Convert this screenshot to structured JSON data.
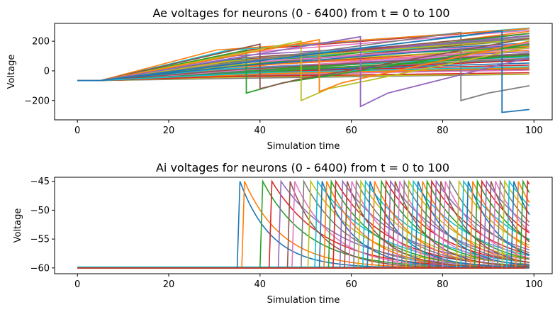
{
  "chart_data": [
    {
      "type": "line",
      "title": "Ae voltages for neurons (0 - 6400) from t = 0 to 100",
      "xlabel": "Simulation time",
      "ylabel": "Voltage",
      "xlim": [
        -5,
        104
      ],
      "ylim": [
        -330,
        320
      ],
      "xticks": [
        0,
        20,
        40,
        60,
        80,
        100
      ],
      "yticks": [
        -200,
        0,
        200
      ],
      "n_series_drawn": 60,
      "series": [
        {
          "x": [
            0,
            5,
            37,
            37,
            45,
            99
          ],
          "y": [
            -65,
            -65,
            140,
            -150,
            -80,
            180
          ]
        },
        {
          "x": [
            0,
            5,
            40,
            40,
            48,
            99
          ],
          "y": [
            -65,
            -65,
            180,
            -120,
            -60,
            220
          ]
        },
        {
          "x": [
            0,
            5,
            49,
            49,
            55,
            99
          ],
          "y": [
            -65,
            -65,
            200,
            -200,
            -120,
            160
          ]
        },
        {
          "x": [
            0,
            5,
            53,
            53,
            58,
            99
          ],
          "y": [
            -65,
            -65,
            210,
            -140,
            -80,
            200
          ]
        },
        {
          "x": [
            0,
            5,
            62,
            62,
            68,
            99
          ],
          "y": [
            -65,
            -65,
            230,
            -240,
            -150,
            90
          ]
        },
        {
          "x": [
            0,
            5,
            84,
            84,
            90,
            99
          ],
          "y": [
            -65,
            -65,
            260,
            -200,
            -150,
            -100
          ]
        },
        {
          "x": [
            0,
            5,
            93,
            93,
            99
          ],
          "y": [
            -65,
            -65,
            270,
            -280,
            -260
          ]
        }
      ]
    },
    {
      "type": "line",
      "title": "Ai voltages for neurons (0 - 6400) from t = 0 to 100",
      "xlabel": "Simulation time",
      "ylabel": "Voltage",
      "xlim": [
        -5,
        104
      ],
      "ylim": [
        -61,
        -44.3
      ],
      "xticks": [
        0,
        20,
        40,
        60,
        80,
        100
      ],
      "yticks": [
        -45,
        -50,
        -55,
        -60
      ],
      "resting_voltage": -60,
      "peak_voltage": -45,
      "spike_times": [
        35,
        36,
        40,
        42,
        44,
        46,
        47,
        49,
        50.5,
        52,
        53,
        54,
        55,
        56,
        57.5,
        58.5,
        59.5,
        60.5,
        61.5,
        62.5,
        63.5,
        64.5,
        66,
        67,
        68,
        69,
        70,
        71,
        72,
        73,
        74,
        75,
        76,
        77,
        78,
        79,
        80,
        81,
        83,
        84,
        85,
        86,
        87,
        88,
        89,
        90,
        91,
        92,
        93,
        94,
        95,
        96,
        97,
        98
      ]
    }
  ]
}
